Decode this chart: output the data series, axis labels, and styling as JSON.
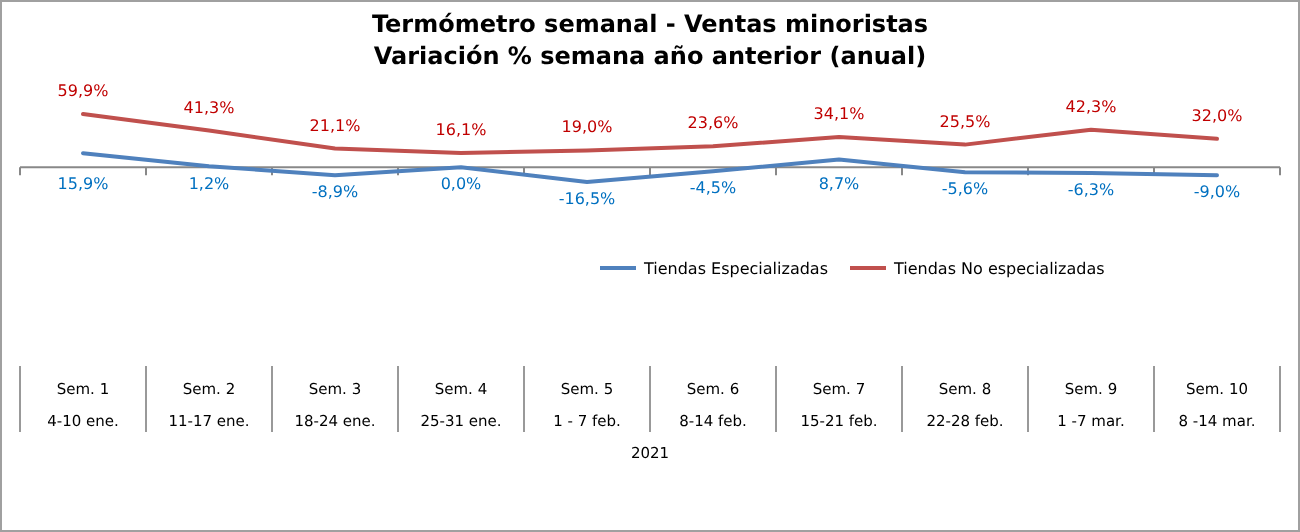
{
  "chart_data": {
    "type": "line",
    "title": "Termómetro semanal - Ventas minoristas",
    "subtitle": "Variación % semana año anterior (anual)",
    "xlabel": "2021",
    "categories": [
      "Sem. 1\n4-10 ene.",
      "Sem. 2\n11-17 ene.",
      "Sem. 3\n18-24 ene.",
      "Sem. 4\n25-31 ene.",
      "Sem. 5\n1 - 7 feb.",
      "Sem. 6\n8-14 feb.",
      "Sem. 7\n15-21 feb.",
      "Sem. 8\n22-28 feb.",
      "Sem. 9\n1 -7 mar.",
      "Sem. 10\n8 -14 mar."
    ],
    "series": [
      {
        "name": "Tiendas Especializadas",
        "color": "#4f81bd",
        "values": [
          15.9,
          1.2,
          -8.9,
          0.0,
          -16.5,
          -4.5,
          8.7,
          -5.6,
          -6.3,
          -9.0
        ],
        "value_labels": [
          "15,9%",
          "1,2%",
          "-8,9%",
          "0,0%",
          "-16,5%",
          "-4,5%",
          "8,7%",
          "-5,6%",
          "-6,3%",
          "-9,0%"
        ]
      },
      {
        "name": "Tiendas No especializadas",
        "color": "#c0504d",
        "values": [
          59.9,
          41.3,
          21.1,
          16.1,
          19.0,
          23.6,
          34.1,
          25.5,
          42.3,
          32.0
        ],
        "value_labels": [
          "59,9%",
          "41,3%",
          "21,1%",
          "16,1%",
          "19,0%",
          "23,6%",
          "34,1%",
          "25,5%",
          "42,3%",
          "32,0%"
        ]
      }
    ],
    "legend": "bottom right",
    "marker": "none",
    "line_style": "solid",
    "grid": false
  }
}
